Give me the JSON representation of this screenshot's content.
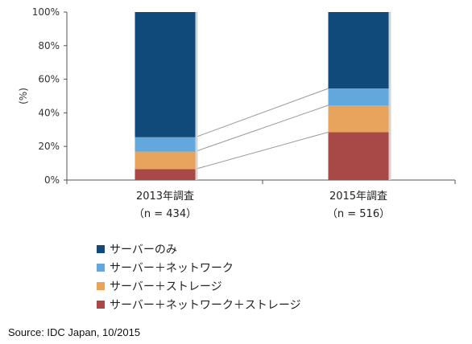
{
  "chart_data": {
    "type": "bar",
    "stacked": true,
    "categories": [
      "2013年調査",
      "2015年調査"
    ],
    "category_sublabels": [
      "（n = 434）",
      "（n = 516）"
    ],
    "ylabel": "(%)",
    "ylim": [
      0,
      100
    ],
    "yticks": [
      "0%",
      "20%",
      "40%",
      "60%",
      "80%",
      "100%"
    ],
    "series": [
      {
        "name": "サーバー＋ネットワーク＋ストレージ",
        "values": [
          6.5,
          28.5
        ],
        "color": "#a94947"
      },
      {
        "name": "サーバー＋ストレージ",
        "values": [
          10.5,
          16.0
        ],
        "color": "#e8a45c"
      },
      {
        "name": "サーバー＋ネットワーク",
        "values": [
          8.5,
          10.0
        ],
        "color": "#62a8dc"
      },
      {
        "name": "サーバーのみ",
        "values": [
          74.5,
          45.5
        ],
        "color": "#0f4a7b"
      }
    ],
    "legend": [
      {
        "name": "サーバーのみ",
        "color": "#0f4a7b"
      },
      {
        "name": "サーバー＋ネットワーク",
        "color": "#62a8dc"
      },
      {
        "name": "サーバー＋ストレージ",
        "color": "#e8a45c"
      },
      {
        "name": "サーバー＋ネットワーク＋ストレージ",
        "color": "#a94947"
      }
    ],
    "legend_position": "bottom-left",
    "connector_lines": true,
    "grid": false
  },
  "source": "Source: IDC Japan, 10/2015"
}
